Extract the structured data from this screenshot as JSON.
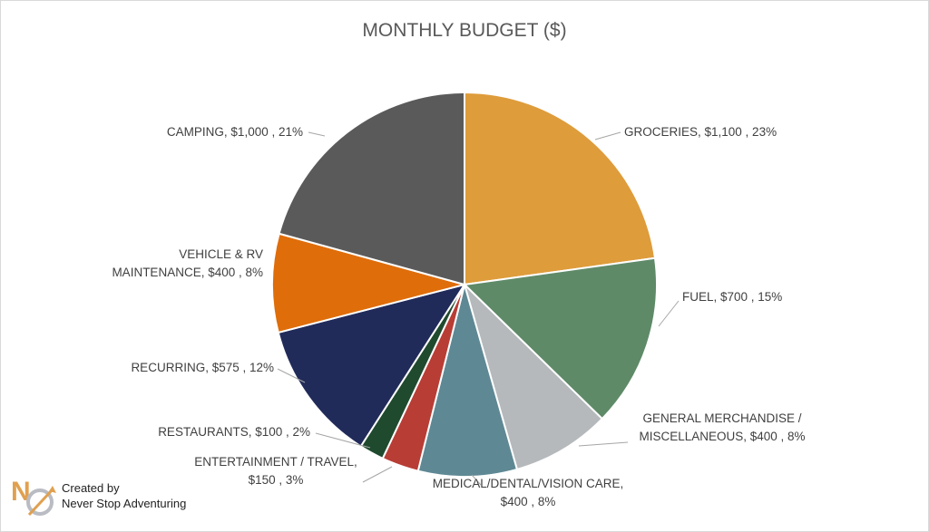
{
  "chart_data": {
    "type": "pie",
    "title": "MONTHLY BUDGET ($)",
    "slices": [
      {
        "name": "GROCERIES",
        "value": 1100,
        "percent": 23,
        "color": "#DE9C3B",
        "label_lines": [
          "GROCERIES, $1,100 , 23%"
        ]
      },
      {
        "name": "FUEL",
        "value": 700,
        "percent": 15,
        "color": "#5E8A68",
        "label_lines": [
          "FUEL, $700 , 15%"
        ]
      },
      {
        "name": "GENERAL MERCHANDISE / MISCELLANEOUS",
        "value": 400,
        "percent": 8,
        "color": "#B5B9BC",
        "label_lines": [
          "GENERAL MERCHANDISE /",
          "MISCELLANEOUS, $400 , 8%"
        ]
      },
      {
        "name": "MEDICAL/DENTAL/VISION CARE",
        "value": 400,
        "percent": 8,
        "color": "#5E8894",
        "label_lines": [
          "MEDICAL/DENTAL/VISION CARE,",
          "$400 , 8%"
        ]
      },
      {
        "name": "ENTERTAINMENT / TRAVEL",
        "value": 150,
        "percent": 3,
        "color": "#B83D35",
        "label_lines": [
          "ENTERTAINMENT / TRAVEL,",
          "$150 , 3%"
        ]
      },
      {
        "name": "RESTAURANTS",
        "value": 100,
        "percent": 2,
        "color": "#1F4A2E",
        "label_lines": [
          "RESTAURANTS, $100 , 2%"
        ]
      },
      {
        "name": "RECURRING",
        "value": 575,
        "percent": 12,
        "color": "#212B5A",
        "label_lines": [
          "RECURRING, $575 , 12%"
        ]
      },
      {
        "name": "VEHICLE & RV MAINTENANCE",
        "value": 400,
        "percent": 8,
        "color": "#DF6D0A",
        "label_lines": [
          "VEHICLE & RV",
          "MAINTENANCE, $400 , 8%"
        ]
      },
      {
        "name": "CAMPING",
        "value": 1000,
        "percent": 21,
        "color": "#5A5A5A",
        "label_lines": [
          "CAMPING, $1,000 , 21%"
        ]
      }
    ]
  },
  "credit": {
    "line1": "Created by",
    "line2": "Never Stop Adventuring"
  },
  "logo": {
    "icon": "never-stop-adventuring-logo",
    "color_primary": "#E0A050",
    "color_secondary": "#B9BCC2"
  }
}
